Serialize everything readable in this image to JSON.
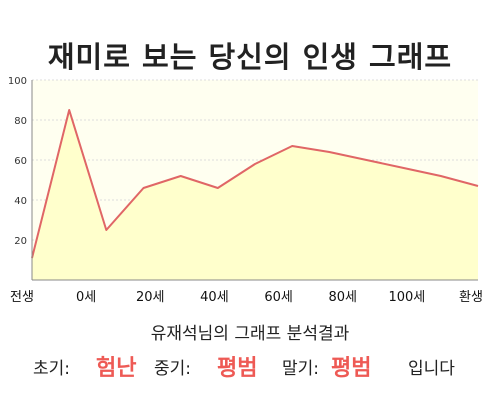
{
  "title": "재미로 보는 당신의 인생 그래프",
  "chart_data": {
    "type": "area",
    "x": [
      0,
      1,
      2,
      3,
      4,
      5,
      6,
      7,
      8,
      9,
      10,
      11,
      12
    ],
    "values": [
      11,
      85,
      25,
      46,
      52,
      46,
      58,
      67,
      64,
      60,
      56,
      52,
      47
    ],
    "ylim": [
      0,
      100
    ],
    "yticks": [
      20,
      40,
      60,
      80,
      100
    ],
    "xtick_labels": [
      "전생",
      "0세",
      "20세",
      "40세",
      "60세",
      "80세",
      "100세",
      "환생"
    ],
    "grid": true,
    "colors": {
      "line": "#e06666",
      "fill": "#ffffcc",
      "plot_bg": "#fffff0",
      "grid": "#dddddd"
    }
  },
  "result": {
    "heading": "유재석님의 그래프 분석결과",
    "early_label": "초기:",
    "early_value": "험난",
    "mid_label": "중기:",
    "mid_value": "평범",
    "late_label": "말기:",
    "late_value": "평범",
    "suffix": "입니다"
  }
}
